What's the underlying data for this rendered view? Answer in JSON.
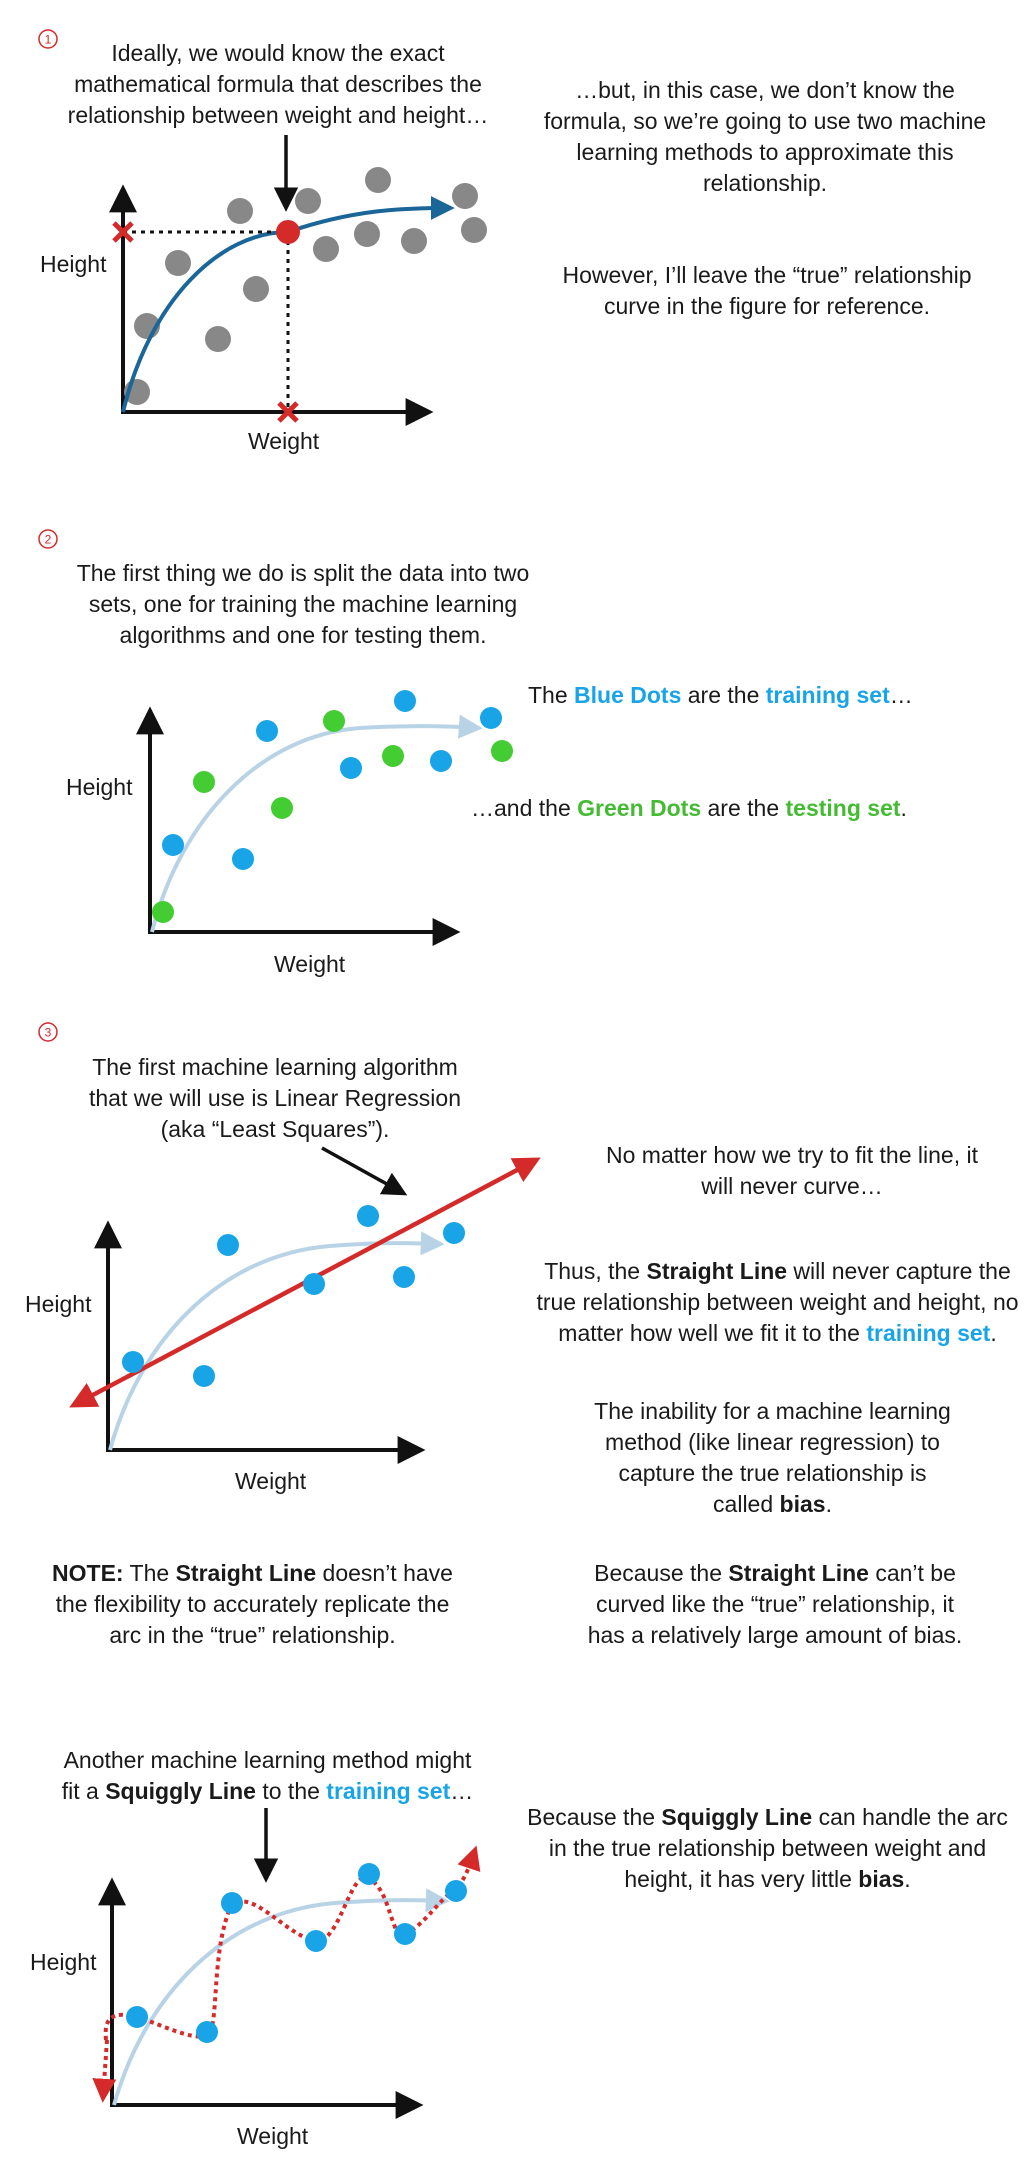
{
  "colors": {
    "red": "#d42a2a",
    "blue_dot": "#1aa4e8",
    "green_dot": "#44cc33",
    "gray_dot": "#888888",
    "true_curve": "#1a6699",
    "faded_curve": "#b9d3e6",
    "axis": "#111111"
  },
  "panel1": {
    "step": "1",
    "caption": "Ideally, we would know the exact mathematical formula that describes the relationship between weight and height…",
    "ylabel": "Height",
    "xlabel": "Weight",
    "note1": "…but, in this case, we don’t know the formula, so we’re going to use two machine learning methods to approximate this relationship.",
    "note2": "However, I’ll leave the “true” relationship curve in the figure for reference."
  },
  "panel2": {
    "step": "2",
    "caption": "The first thing we do is split the data into two sets, one for training the machine learning algorithms and one for testing them.",
    "ylabel": "Height",
    "xlabel": "Weight",
    "blue_pre": "The ",
    "blue_term": "Blue Dots",
    "blue_mid": " are the ",
    "blue_set": "training set",
    "blue_end": "…",
    "green_pre": "…and the ",
    "green_term": "Green Dots",
    "green_mid": " are the ",
    "green_set": "testing set",
    "green_end": "."
  },
  "panel3": {
    "step": "3",
    "caption": "The first machine learning algorithm that we will use is Linear Regression (aka “Least Squares”).",
    "ylabel": "Height",
    "xlabel": "Weight",
    "curve_note": "No matter how we try to fit the line, it will never curve…",
    "thus_pre": "Thus, the ",
    "thus_term": "Straight Line",
    "thus_mid": " will never capture the true relationship between weight and height, no matter how well we fit it to the ",
    "thus_set": "training set",
    "thus_end": ".",
    "bias_pre": "The inability for a machine learning method (like linear regression) to capture the true relationship is called ",
    "bias_term": "bias",
    "bias_end": ".",
    "note_label": "NOTE:",
    "note_pre": " The ",
    "note_term": "Straight Line",
    "note_end": " doesn’t have the flexibility to accurately replicate the arc in the “true” relationship.",
    "because_pre": "Because the ",
    "because_term": "Straight Line",
    "because_end": " can’t be curved like the “true” relationship, it has a relatively large amount of bias."
  },
  "panel4": {
    "cap_pre": "Another machine learning method might fit a ",
    "cap_term": "Squiggly Line",
    "cap_mid": " to the ",
    "cap_set": "training set",
    "cap_end": "…",
    "ylabel": "Height",
    "xlabel": "Weight",
    "note_pre": "Because the ",
    "note_term": "Squiggly Line",
    "note_mid": " can handle the arc in the true relationship between weight and height, it has very little ",
    "note_term2": "bias",
    "note_end": "."
  }
}
